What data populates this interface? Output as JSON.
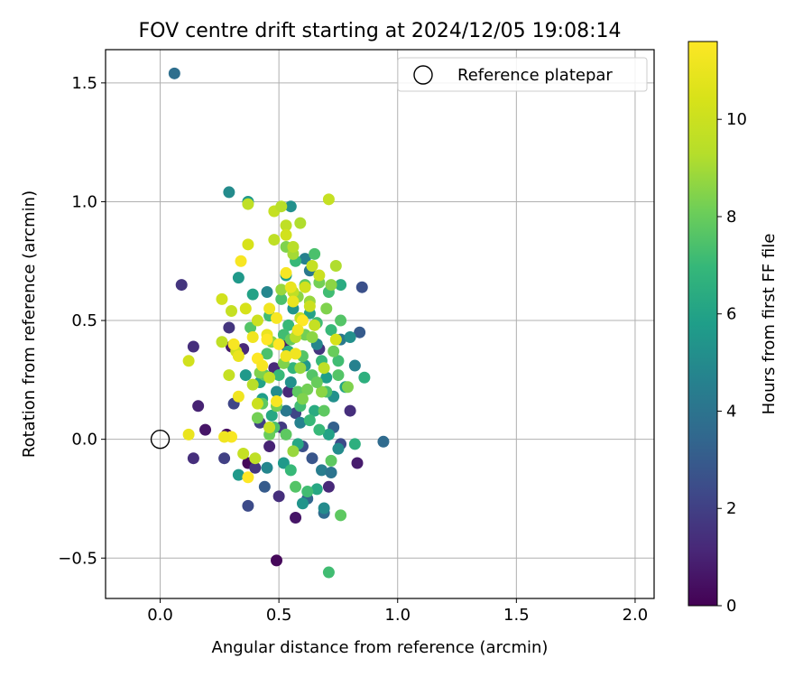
{
  "chart_data": {
    "type": "scatter",
    "title": "FOV centre drift starting at 2024/12/05 19:08:14",
    "xlabel": "Angular distance from reference (arcmin)",
    "ylabel": "Rotation from reference (arcmin)",
    "xlim": [
      -0.23,
      2.08
    ],
    "ylim": [
      -0.67,
      1.64
    ],
    "xticks": [
      0.0,
      0.5,
      1.0,
      1.5,
      2.0
    ],
    "xtick_labels": [
      "0.0",
      "0.5",
      "1.0",
      "1.5",
      "2.0"
    ],
    "yticks": [
      -0.5,
      0.0,
      0.5,
      1.0,
      1.5
    ],
    "ytick_labels": [
      "−0.5",
      "0.0",
      "0.5",
      "1.0",
      "1.5"
    ],
    "grid": true,
    "legend": {
      "position": "upper-right",
      "entries": [
        "Reference platepar"
      ]
    },
    "reference_point": {
      "x": 0.0,
      "y": 0.0,
      "marker": "open-circle",
      "color": "#000000"
    },
    "colormap": "viridis",
    "colorbar": {
      "label": "Hours from first FF file",
      "range": [
        0,
        11.6
      ],
      "ticks": [
        0,
        2,
        4,
        6,
        8,
        10
      ],
      "tick_labels": [
        "0",
        "2",
        "4",
        "6",
        "8",
        "10"
      ]
    },
    "series": [
      {
        "points_xyc": [
          [
            0.06,
            1.54,
            3.8
          ],
          [
            0.09,
            0.65,
            1.6
          ],
          [
            0.14,
            0.39,
            1.4
          ],
          [
            0.16,
            0.14,
            1.0
          ],
          [
            0.14,
            -0.08,
            1.4
          ],
          [
            0.19,
            0.04,
            0.6
          ],
          [
            0.27,
            -0.08,
            2.0
          ],
          [
            0.28,
            0.02,
            0.4
          ],
          [
            0.29,
            0.47,
            1.6
          ],
          [
            0.31,
            0.15,
            2.2
          ],
          [
            0.35,
            0.38,
            1.2
          ],
          [
            0.37,
            -0.28,
            2.4
          ],
          [
            0.37,
            -0.1,
            0.2
          ],
          [
            0.4,
            -0.12,
            1.6
          ],
          [
            0.42,
            0.07,
            2.0
          ],
          [
            0.44,
            -0.2,
            3.0
          ],
          [
            0.46,
            -0.03,
            1.0
          ],
          [
            0.49,
            -0.51,
            0.2
          ],
          [
            0.5,
            -0.24,
            1.4
          ],
          [
            0.51,
            0.05,
            1.8
          ],
          [
            0.54,
            0.2,
            1.2
          ],
          [
            0.57,
            0.11,
            2.2
          ],
          [
            0.57,
            -0.33,
            0.6
          ],
          [
            0.6,
            -0.03,
            2.6
          ],
          [
            0.62,
            -0.25,
            3.4
          ],
          [
            0.64,
            -0.08,
            2.8
          ],
          [
            0.67,
            0.38,
            1.6
          ],
          [
            0.69,
            -0.31,
            3.6
          ],
          [
            0.71,
            -0.2,
            1.2
          ],
          [
            0.73,
            0.05,
            3.2
          ],
          [
            0.76,
            -0.02,
            2.4
          ],
          [
            0.8,
            0.12,
            1.4
          ],
          [
            0.83,
            -0.1,
            0.8
          ],
          [
            0.84,
            0.45,
            3.0
          ],
          [
            0.85,
            0.64,
            2.6
          ],
          [
            0.94,
            -0.01,
            3.6
          ],
          [
            0.52,
            0.4,
            0.8
          ],
          [
            0.48,
            0.3,
            1.2
          ],
          [
            0.58,
            0.45,
            1.6
          ],
          [
            0.3,
            0.39,
            0.8
          ],
          [
            0.29,
            1.04,
            5.0
          ],
          [
            0.37,
            1.0,
            5.6
          ],
          [
            0.55,
            0.98,
            5.2
          ],
          [
            0.33,
            0.68,
            5.6
          ],
          [
            0.39,
            0.61,
            6.0
          ],
          [
            0.45,
            0.62,
            4.8
          ],
          [
            0.53,
            0.69,
            5.8
          ],
          [
            0.61,
            0.76,
            4.6
          ],
          [
            0.63,
            0.71,
            4.2
          ],
          [
            0.76,
            0.65,
            6.4
          ],
          [
            0.76,
            0.42,
            4.2
          ],
          [
            0.8,
            0.43,
            5.2
          ],
          [
            0.82,
            0.31,
            4.6
          ],
          [
            0.86,
            0.26,
            6.6
          ],
          [
            0.36,
            0.27,
            5.6
          ],
          [
            0.33,
            -0.15,
            5.6
          ],
          [
            0.42,
            0.24,
            6.0
          ],
          [
            0.45,
            -0.12,
            4.8
          ],
          [
            0.52,
            -0.1,
            5.6
          ],
          [
            0.55,
            0.24,
            5.2
          ],
          [
            0.6,
            -0.27,
            5.4
          ],
          [
            0.66,
            -0.21,
            6.2
          ],
          [
            0.68,
            -0.13,
            4.4
          ],
          [
            0.69,
            -0.29,
            5.0
          ],
          [
            0.72,
            -0.14,
            4.0
          ],
          [
            0.75,
            -0.04,
            5.0
          ],
          [
            0.78,
            0.22,
            6.0
          ],
          [
            0.82,
            -0.02,
            6.6
          ],
          [
            0.63,
            0.53,
            6.0
          ],
          [
            0.56,
            0.55,
            5.4
          ],
          [
            0.49,
            0.2,
            5.0
          ],
          [
            0.59,
            0.07,
            4.6
          ],
          [
            0.61,
            0.31,
            5.6
          ],
          [
            0.65,
            0.12,
            6.4
          ],
          [
            0.7,
            0.26,
            5.8
          ],
          [
            0.73,
            0.18,
            5.2
          ],
          [
            0.47,
            0.1,
            6.2
          ],
          [
            0.54,
            0.37,
            6.6
          ],
          [
            0.58,
            -0.02,
            6.2
          ],
          [
            0.53,
            0.12,
            4.2
          ],
          [
            0.66,
            0.4,
            4.8
          ],
          [
            0.71,
            0.02,
            6.0
          ],
          [
            0.56,
            0.3,
            6.8
          ],
          [
            0.43,
            0.17,
            5.8
          ],
          [
            0.71,
            0.62,
            7.2
          ],
          [
            0.65,
            0.78,
            7.4
          ],
          [
            0.72,
            0.46,
            7.0
          ],
          [
            0.75,
            0.33,
            7.2
          ],
          [
            0.76,
            0.5,
            7.6
          ],
          [
            0.61,
            0.65,
            7.8
          ],
          [
            0.57,
            0.75,
            7.0
          ],
          [
            0.51,
            0.59,
            7.4
          ],
          [
            0.46,
            0.52,
            7.2
          ],
          [
            0.38,
            0.47,
            7.6
          ],
          [
            0.43,
            0.15,
            7.8
          ],
          [
            0.48,
            0.05,
            7.4
          ],
          [
            0.55,
            -0.13,
            7.0
          ],
          [
            0.57,
            -0.2,
            7.6
          ],
          [
            0.62,
            -0.22,
            7.2
          ],
          [
            0.67,
            0.04,
            7.0
          ],
          [
            0.7,
            0.2,
            7.4
          ],
          [
            0.72,
            -0.09,
            7.8
          ],
          [
            0.75,
            0.27,
            7.6
          ],
          [
            0.71,
            -0.56,
            7.2
          ],
          [
            0.76,
            -0.32,
            7.8
          ],
          [
            0.59,
            0.14,
            7.2
          ],
          [
            0.64,
            0.27,
            7.6
          ],
          [
            0.53,
            0.02,
            7.8
          ],
          [
            0.66,
            0.49,
            7.2
          ],
          [
            0.69,
            0.12,
            7.8
          ],
          [
            0.54,
            0.48,
            7.0
          ],
          [
            0.6,
            0.35,
            7.6
          ],
          [
            0.5,
            0.27,
            7.0
          ],
          [
            0.63,
            0.08,
            7.0
          ],
          [
            0.45,
            0.36,
            7.4
          ],
          [
            0.68,
            0.33,
            7.0
          ],
          [
            0.58,
            0.2,
            7.8
          ],
          [
            0.52,
            0.44,
            7.2
          ],
          [
            0.44,
            0.27,
            7.8
          ],
          [
            0.61,
            0.44,
            8.2
          ],
          [
            0.58,
            0.6,
            8.6
          ],
          [
            0.53,
            0.81,
            8.4
          ],
          [
            0.56,
            0.78,
            9.0
          ],
          [
            0.63,
            0.58,
            8.8
          ],
          [
            0.67,
            0.66,
            8.2
          ],
          [
            0.7,
            0.55,
            8.4
          ],
          [
            0.72,
            0.65,
            8.6
          ],
          [
            0.73,
            0.37,
            8.0
          ],
          [
            0.79,
            0.22,
            8.4
          ],
          [
            0.62,
            0.21,
            8.2
          ],
          [
            0.59,
            0.3,
            8.8
          ],
          [
            0.47,
            0.41,
            8.6
          ],
          [
            0.42,
            0.28,
            8.4
          ],
          [
            0.41,
            0.09,
            8.2
          ],
          [
            0.46,
            0.02,
            8.0
          ],
          [
            0.56,
            -0.05,
            8.8
          ],
          [
            0.68,
            0.2,
            8.6
          ],
          [
            0.66,
            0.24,
            8.0
          ],
          [
            0.51,
            0.63,
            8.8
          ],
          [
            0.49,
            0.14,
            8.2
          ],
          [
            0.6,
            0.17,
            8.4
          ],
          [
            0.64,
            0.43,
            8.6
          ],
          [
            0.55,
            0.42,
            8.0
          ],
          [
            0.52,
            0.32,
            8.4
          ],
          [
            0.37,
            0.99,
            9.6
          ],
          [
            0.48,
            0.96,
            9.8
          ],
          [
            0.51,
            0.98,
            9.4
          ],
          [
            0.53,
            0.9,
            9.6
          ],
          [
            0.59,
            0.91,
            9.2
          ],
          [
            0.53,
            0.86,
            10.2
          ],
          [
            0.71,
            1.01,
            9.8
          ],
          [
            0.48,
            0.84,
            9.6
          ],
          [
            0.56,
            0.81,
            9.4
          ],
          [
            0.37,
            0.82,
            10.4
          ],
          [
            0.64,
            0.73,
            9.8
          ],
          [
            0.74,
            0.73,
            9.2
          ],
          [
            0.56,
            0.62,
            9.6
          ],
          [
            0.67,
            0.69,
            10.0
          ],
          [
            0.26,
            0.59,
            10.2
          ],
          [
            0.3,
            0.54,
            9.8
          ],
          [
            0.36,
            0.55,
            10.4
          ],
          [
            0.41,
            0.5,
            10.0
          ],
          [
            0.26,
            0.41,
            9.6
          ],
          [
            0.32,
            0.37,
            10.2
          ],
          [
            0.29,
            0.27,
            9.8
          ],
          [
            0.39,
            0.23,
            9.4
          ],
          [
            0.46,
            0.26,
            9.6
          ],
          [
            0.46,
            0.05,
            9.8
          ],
          [
            0.41,
            0.15,
            10.0
          ],
          [
            0.12,
            0.33,
            10.2
          ],
          [
            0.35,
            -0.06,
            9.8
          ],
          [
            0.4,
            -0.08,
            9.6
          ],
          [
            0.57,
            0.43,
            9.4
          ],
          [
            0.61,
            0.64,
            10.2
          ],
          [
            0.65,
            0.48,
            9.8
          ],
          [
            0.69,
            0.3,
            9.6
          ],
          [
            0.74,
            0.42,
            10.4
          ],
          [
            0.63,
            0.56,
            10.0
          ],
          [
            0.59,
            0.51,
            9.8
          ],
          [
            0.34,
            0.75,
            11.4
          ],
          [
            0.46,
            0.55,
            11.2
          ],
          [
            0.49,
            0.51,
            11.4
          ],
          [
            0.55,
            0.64,
            11.0
          ],
          [
            0.6,
            0.5,
            11.6
          ],
          [
            0.58,
            0.46,
            11.2
          ],
          [
            0.53,
            0.7,
            11.4
          ],
          [
            0.39,
            0.43,
            11.2
          ],
          [
            0.41,
            0.34,
            11.6
          ],
          [
            0.33,
            0.35,
            11.0
          ],
          [
            0.31,
            0.4,
            11.4
          ],
          [
            0.45,
            0.44,
            11.0
          ],
          [
            0.5,
            0.4,
            11.6
          ],
          [
            0.57,
            0.36,
            11.2
          ],
          [
            0.43,
            0.31,
            11.4
          ],
          [
            0.33,
            0.18,
            11.2
          ],
          [
            0.3,
            0.01,
            11.4
          ],
          [
            0.12,
            0.02,
            11.0
          ],
          [
            0.27,
            0.01,
            11.2
          ],
          [
            0.37,
            -0.16,
            11.6
          ],
          [
            0.56,
            0.58,
            11.0
          ],
          [
            0.49,
            0.16,
            11.4
          ],
          [
            0.45,
            0.42,
            11.6
          ],
          [
            0.53,
            0.35,
            11.2
          ]
        ]
      }
    ]
  }
}
